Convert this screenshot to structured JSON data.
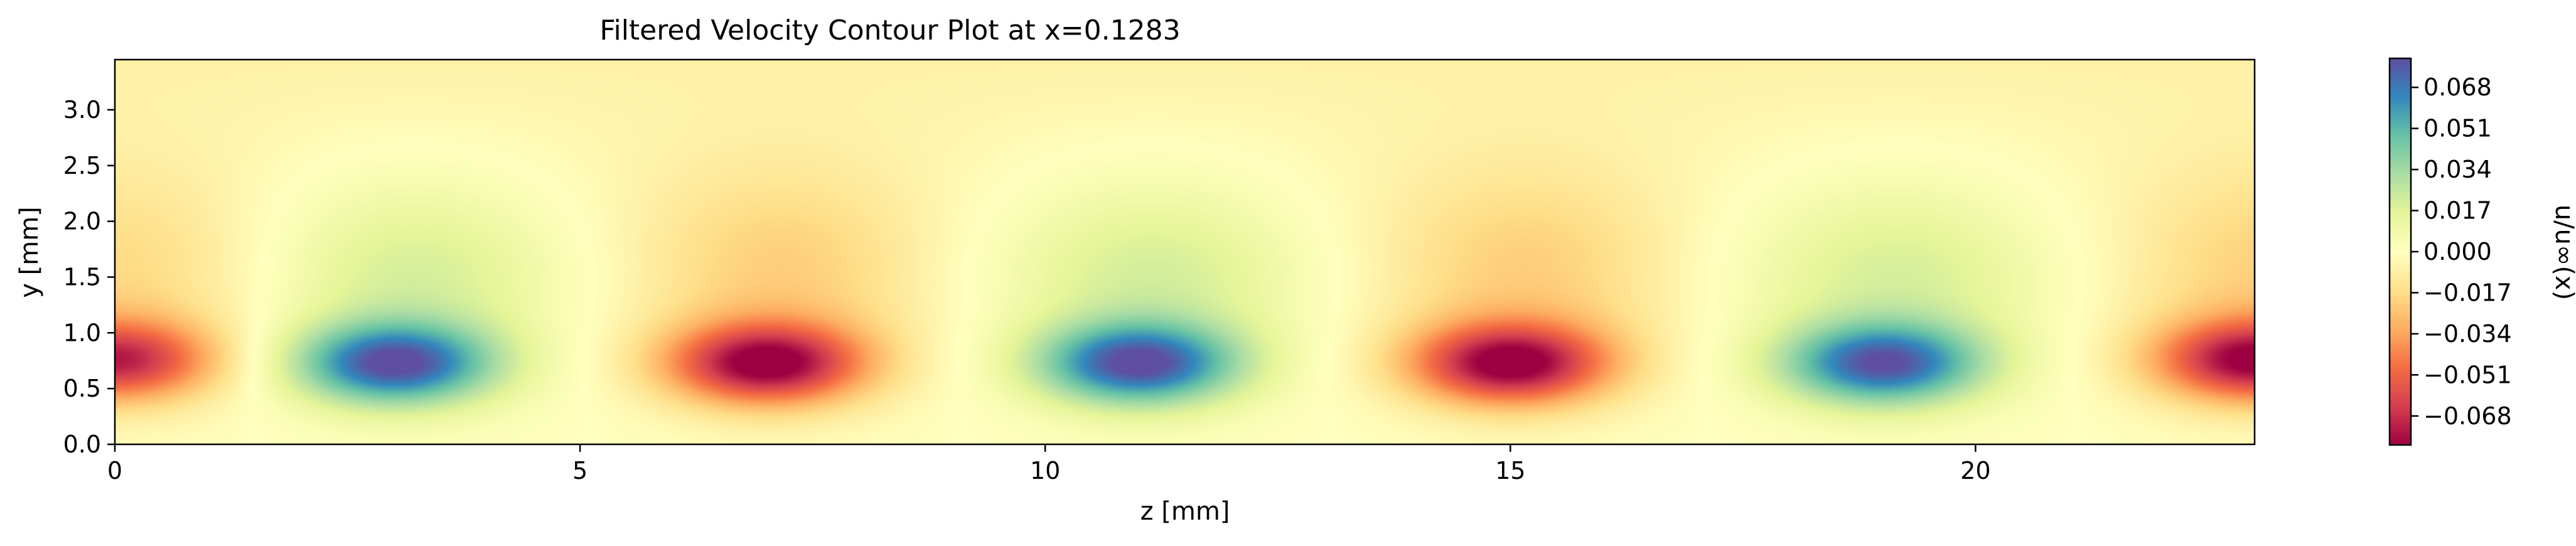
{
  "chart_data": {
    "type": "heatmap",
    "title": "Filtered Velocity Contour Plot at x=0.1283",
    "xlabel": "z [mm]",
    "ylabel": "y [mm]",
    "colorbar_label": "u/u∞(x)",
    "xlim": [
      0,
      23
    ],
    "ylim": [
      0,
      3.45
    ],
    "xticks": [
      0,
      5,
      10,
      15,
      20
    ],
    "xtick_labels": [
      "0",
      "5",
      "10",
      "15",
      "20"
    ],
    "yticks": [
      0.0,
      0.5,
      1.0,
      1.5,
      2.0,
      2.5,
      3.0
    ],
    "ytick_labels": [
      "0.0",
      "0.5",
      "1.0",
      "1.5",
      "2.0",
      "2.5",
      "3.0"
    ],
    "colorbar_range": [
      -0.08,
      0.08
    ],
    "colorbar_ticks": [
      0.068,
      0.051,
      0.034,
      0.017,
      0.0,
      -0.017,
      -0.034,
      -0.051,
      -0.068
    ],
    "colorbar_tick_labels": [
      "0.068",
      "0.051",
      "0.034",
      "0.017",
      "0.000",
      "−0.017",
      "−0.034",
      "−0.051",
      "−0.068"
    ],
    "colormap": "Spectral",
    "colormap_stops": [
      "#9e0142",
      "#d53e4f",
      "#f46d43",
      "#fdae61",
      "#fee08b",
      "#ffffbf",
      "#e6f598",
      "#abdda4",
      "#66c2a5",
      "#3288bd",
      "#5e4fa2"
    ],
    "structures": [
      {
        "z": 0.0,
        "y": 0.75,
        "value": -0.065
      },
      {
        "z": 3.0,
        "y": 0.72,
        "value": 0.075
      },
      {
        "z": 7.0,
        "y": 0.72,
        "value": -0.078
      },
      {
        "z": 11.0,
        "y": 0.72,
        "value": 0.075
      },
      {
        "z": 15.0,
        "y": 0.72,
        "value": -0.078
      },
      {
        "z": 19.0,
        "y": 0.72,
        "value": 0.072
      },
      {
        "z": 23.0,
        "y": 0.75,
        "value": -0.075
      }
    ]
  }
}
